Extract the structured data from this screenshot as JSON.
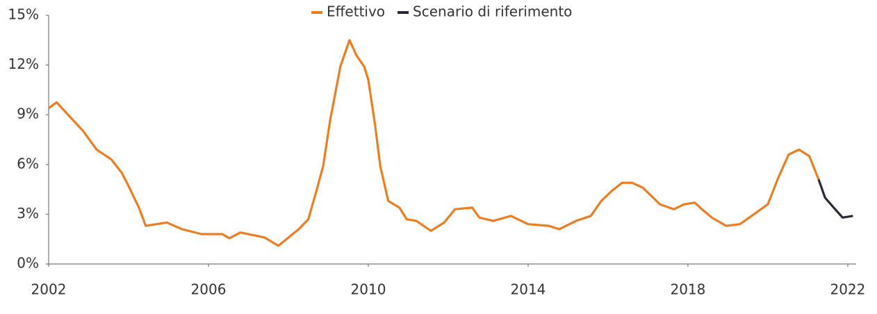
{
  "chart_data": {
    "type": "line",
    "x": [
      2002.0,
      2002.2,
      2002.87,
      2003.2,
      2003.57,
      2003.83,
      2004.0,
      2004.26,
      2004.43,
      2004.96,
      2005.34,
      2005.83,
      2006.35,
      2006.52,
      2006.8,
      2007.4,
      2007.75,
      2008.26,
      2008.5,
      2008.7,
      2008.87,
      2009.04,
      2009.3,
      2009.53,
      2009.7,
      2009.9,
      2010.0,
      2010.17,
      2010.3,
      2010.5,
      2010.78,
      2010.96,
      2011.2,
      2011.57,
      2011.9,
      2012.17,
      2012.6,
      2012.78,
      2013.13,
      2013.57,
      2014.0,
      2014.52,
      2014.78,
      2015.2,
      2015.57,
      2015.83,
      2016.09,
      2016.35,
      2016.6,
      2016.87,
      2017.13,
      2017.3,
      2017.65,
      2017.9,
      2018.17,
      2018.35,
      2018.6,
      2018.96,
      2019.3,
      2019.65,
      2020.0,
      2020.26,
      2020.52,
      2020.78,
      2021.04,
      2021.27,
      2021.43,
      2021.65,
      2021.87,
      2022.13
    ],
    "series": [
      {
        "name": "Effettivo",
        "color": "#ed7d22",
        "values": [
          9.4,
          9.75,
          8.0,
          6.9,
          6.3,
          5.5,
          4.7,
          3.4,
          2.3,
          2.5,
          2.1,
          1.8,
          1.8,
          1.55,
          1.9,
          1.6,
          1.1,
          2.1,
          2.7,
          4.4,
          5.9,
          8.6,
          11.9,
          13.5,
          12.6,
          11.9,
          11.1,
          8.4,
          5.9,
          3.8,
          3.4,
          2.7,
          2.6,
          2.0,
          2.5,
          3.3,
          3.4,
          2.8,
          2.6,
          2.9,
          2.4,
          2.3,
          2.1,
          2.6,
          2.9,
          3.8,
          4.4,
          4.9,
          4.9,
          4.6,
          4.0,
          3.6,
          3.3,
          3.6,
          3.7,
          3.3,
          2.8,
          2.3,
          2.4,
          3.0,
          3.6,
          5.2,
          6.6,
          6.9,
          6.5,
          5.1,
          null,
          null,
          null,
          null
        ]
      },
      {
        "name": "Scenario di riferimento",
        "color": "#262a36",
        "values": [
          null,
          null,
          null,
          null,
          null,
          null,
          null,
          null,
          null,
          null,
          null,
          null,
          null,
          null,
          null,
          null,
          null,
          null,
          null,
          null,
          null,
          null,
          null,
          null,
          null,
          null,
          null,
          null,
          null,
          null,
          null,
          null,
          null,
          null,
          null,
          null,
          null,
          null,
          null,
          null,
          null,
          null,
          null,
          null,
          null,
          null,
          null,
          null,
          null,
          null,
          null,
          null,
          null,
          null,
          null,
          null,
          null,
          null,
          null,
          null,
          null,
          null,
          null,
          null,
          null,
          5.1,
          4.0,
          3.4,
          2.8,
          2.9
        ]
      }
    ],
    "xlim": [
      2002,
      2022.21
    ],
    "xticks": [
      2002,
      2006,
      2010,
      2014,
      2018,
      2022
    ],
    "ylim": [
      0,
      15
    ],
    "yticks": [
      {
        "value": 0,
        "label": "0%"
      },
      {
        "value": 3,
        "label": "3%"
      },
      {
        "value": 6,
        "label": "6%"
      },
      {
        "value": 9,
        "label": "9%"
      },
      {
        "value": 12,
        "label": "12%"
      },
      {
        "value": 15,
        "label": "15%"
      }
    ],
    "grid": false
  }
}
